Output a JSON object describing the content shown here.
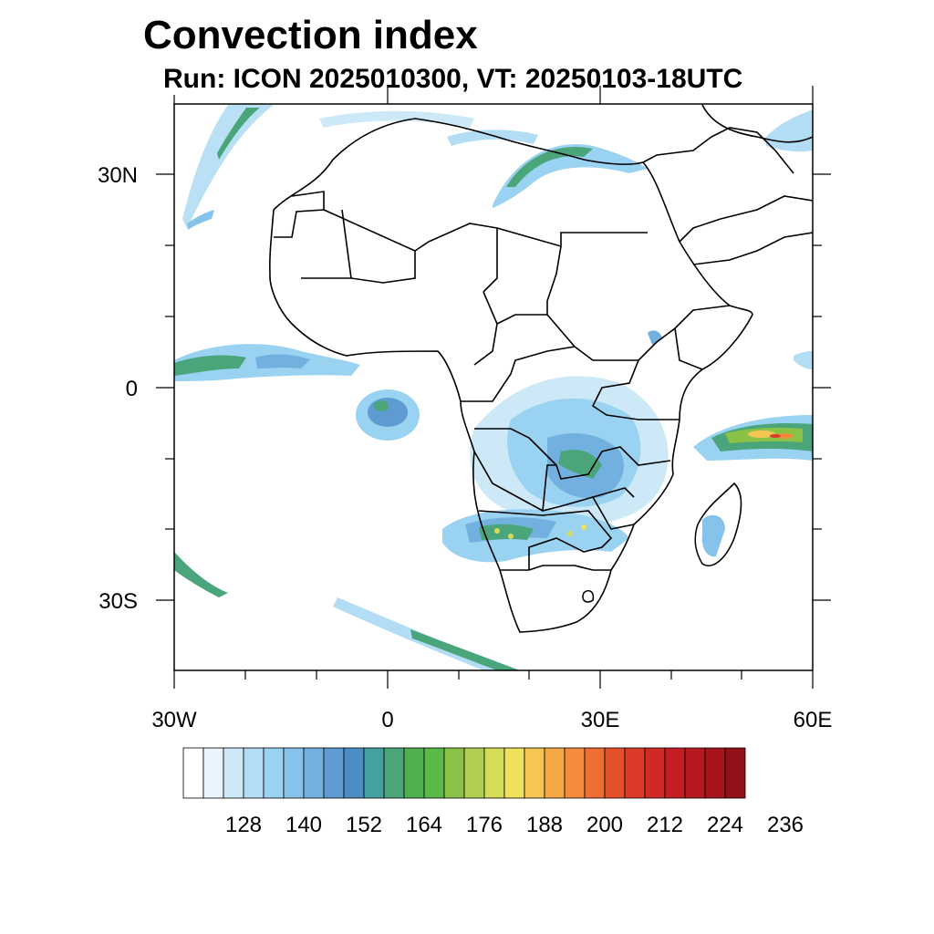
{
  "title": "Convection index",
  "subtitle": "Run: ICON 2025010300,  VT: 20250103-18UTC",
  "map": {
    "lat_labels": [
      "30N",
      "0",
      "30S"
    ],
    "lon_labels": [
      "30W",
      "0",
      "30E",
      "60E"
    ]
  },
  "colorbar": {
    "colors": [
      "#ffffff",
      "#e8f5fc",
      "#cde9f7",
      "#b3ddf4",
      "#9ad3f2",
      "#86c3ea",
      "#72b0e0",
      "#5e9bd2",
      "#4a8ec4",
      "#45a0a0",
      "#4aa67a",
      "#50b050",
      "#5aba48",
      "#8ac248",
      "#b0cf50",
      "#d6dc58",
      "#f0e05c",
      "#f6c653",
      "#f6a847",
      "#f48c3c",
      "#ef6e34",
      "#e5502c",
      "#dc3a28",
      "#d02a26",
      "#c41e24",
      "#b81820",
      "#a8141c",
      "#921018"
    ],
    "labels": [
      "128",
      "140",
      "152",
      "164",
      "176",
      "188",
      "200",
      "212",
      "224",
      "236"
    ]
  }
}
